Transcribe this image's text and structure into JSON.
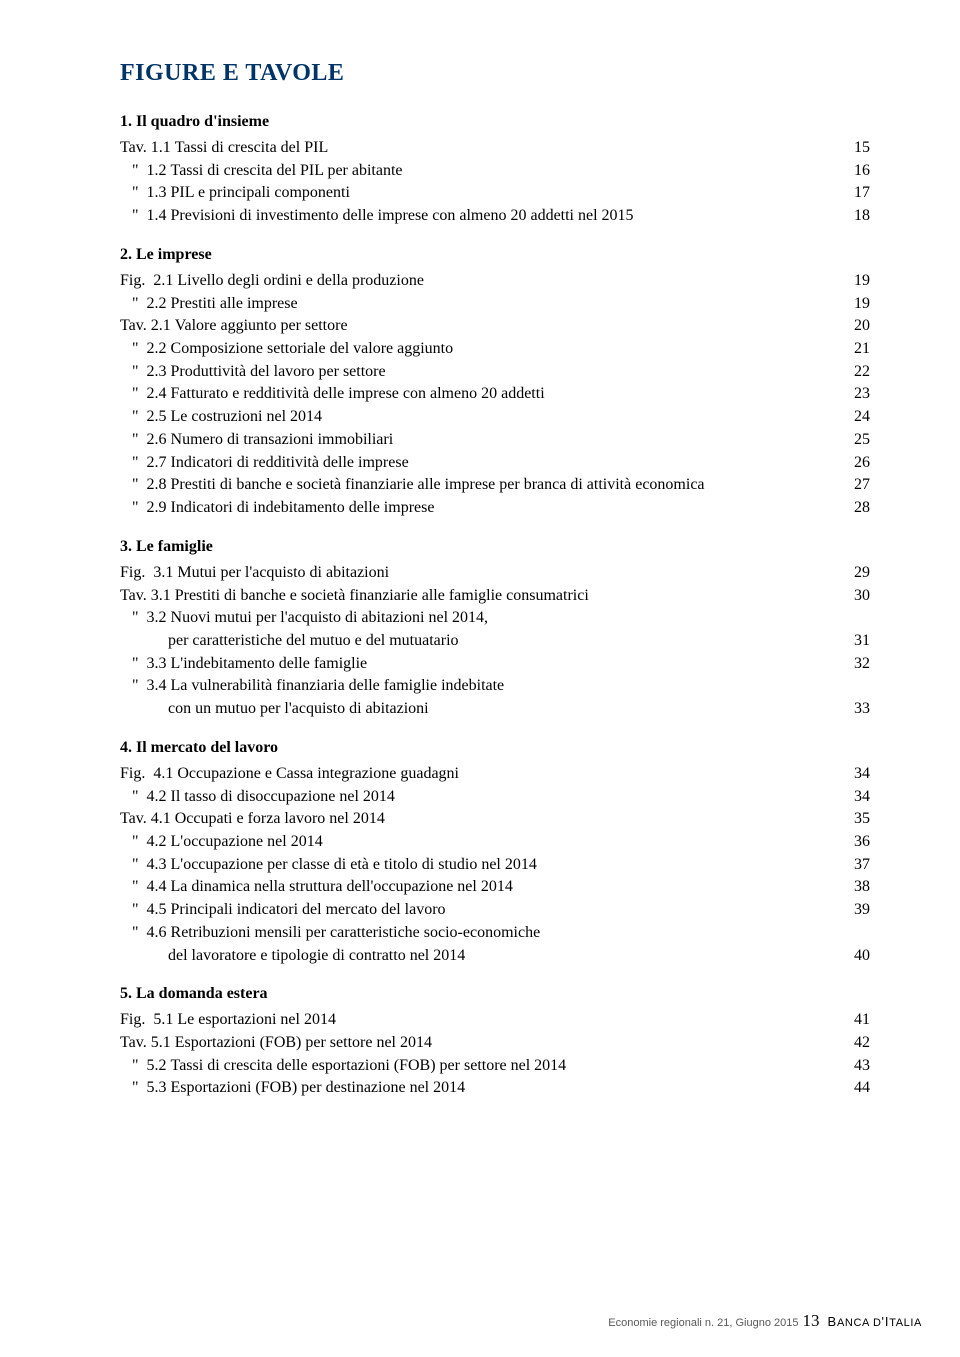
{
  "title": "FIGURE E TAVOLE",
  "sections": [
    {
      "heading": "1. Il quadro d'insieme",
      "entries": [
        {
          "prefix": "Tav.",
          "num": "1.1",
          "label": "Tassi di crescita del PIL",
          "page": 15
        },
        {
          "prefix": "\"",
          "num": "1.2",
          "label": "Tassi di crescita del PIL per abitante",
          "page": 16
        },
        {
          "prefix": "\"",
          "num": "1.3",
          "label": "PIL e principali componenti",
          "page": 17
        },
        {
          "prefix": "\"",
          "num": "1.4",
          "label": "Previsioni di investimento delle imprese con almeno 20 addetti nel 2015",
          "page": 18
        }
      ]
    },
    {
      "heading": "2. Le imprese",
      "entries": [
        {
          "prefix": "Fig.",
          "num": "2.1",
          "label": "Livello degli ordini e della produzione",
          "page": 19
        },
        {
          "prefix": "\"",
          "num": "2.2",
          "label": "Prestiti alle imprese",
          "page": 19
        },
        {
          "prefix": "Tav.",
          "num": "2.1",
          "label": "Valore aggiunto per settore",
          "page": 20
        },
        {
          "prefix": "\"",
          "num": "2.2",
          "label": "Composizione settoriale del valore aggiunto",
          "page": 21
        },
        {
          "prefix": "\"",
          "num": "2.3",
          "label": "Produttività del lavoro per settore",
          "page": 22
        },
        {
          "prefix": "\"",
          "num": "2.4",
          "label": "Fatturato e redditività delle imprese con almeno 20 addetti",
          "page": 23
        },
        {
          "prefix": "\"",
          "num": "2.5",
          "label": "Le costruzioni nel 2014",
          "page": 24
        },
        {
          "prefix": "\"",
          "num": "2.6",
          "label": "Numero di transazioni immobiliari",
          "page": 25
        },
        {
          "prefix": "\"",
          "num": "2.7",
          "label": "Indicatori di redditività delle imprese",
          "page": 26
        },
        {
          "prefix": "\"",
          "num": "2.8",
          "label": "Prestiti di banche e società finanziarie alle imprese per branca di attività economica",
          "page": 27
        },
        {
          "prefix": "\"",
          "num": "2.9",
          "label": "Indicatori di indebitamento delle imprese",
          "page": 28
        }
      ]
    },
    {
      "heading": "3. Le famiglie",
      "entries": [
        {
          "prefix": "Fig.",
          "num": "3.1",
          "label": "Mutui per l'acquisto di abitazioni",
          "page": 29
        },
        {
          "prefix": "Tav.",
          "num": "3.1",
          "label": "Prestiti di banche e società finanziarie alle famiglie consumatrici",
          "page": 30
        },
        {
          "prefix": "\"",
          "num": "3.2",
          "label": "Nuovi mutui per l'acquisto di abitazioni nel 2014,",
          "page": null
        },
        {
          "prefix": "",
          "num": "",
          "label": "per caratteristiche del mutuo e del mutuatario",
          "page": 31,
          "indent": true
        },
        {
          "prefix": "\"",
          "num": "3.3",
          "label": "L'indebitamento delle famiglie",
          "page": 32
        },
        {
          "prefix": "\"",
          "num": "3.4",
          "label": "La vulnerabilità finanziaria delle famiglie indebitate",
          "page": null
        },
        {
          "prefix": "",
          "num": "",
          "label": "con un mutuo per l'acquisto di abitazioni",
          "page": 33,
          "indent": true
        }
      ]
    },
    {
      "heading": "4. Il mercato del lavoro",
      "entries": [
        {
          "prefix": "Fig.",
          "num": "4.1",
          "label": "Occupazione e Cassa integrazione guadagni",
          "page": 34
        },
        {
          "prefix": "\"",
          "num": "4.2",
          "label": "Il tasso di disoccupazione nel 2014",
          "page": 34
        },
        {
          "prefix": "Tav.",
          "num": "4.1",
          "label": "Occupati e forza lavoro nel 2014",
          "page": 35
        },
        {
          "prefix": "\"",
          "num": "4.2",
          "label": "L'occupazione nel 2014",
          "page": 36
        },
        {
          "prefix": "\"",
          "num": "4.3",
          "label": "L'occupazione per classe di età e titolo di studio nel 2014",
          "page": 37
        },
        {
          "prefix": "\"",
          "num": "4.4",
          "label": "La dinamica nella struttura dell'occupazione nel 2014",
          "page": 38
        },
        {
          "prefix": "\"",
          "num": "4.5",
          "label": "Principali indicatori del mercato del lavoro",
          "page": 39
        },
        {
          "prefix": "\"",
          "num": "4.6",
          "label": "Retribuzioni mensili per caratteristiche socio-economiche",
          "page": null
        },
        {
          "prefix": "",
          "num": "",
          "label": "del lavoratore e tipologie di contratto nel 2014",
          "page": 40,
          "indent": true
        }
      ]
    },
    {
      "heading": "5. La domanda estera",
      "entries": [
        {
          "prefix": "Fig.",
          "num": "5.1",
          "label": "Le esportazioni nel 2014",
          "page": 41
        },
        {
          "prefix": "Tav.",
          "num": "5.1",
          "label": "Esportazioni (FOB) per settore nel 2014",
          "page": 42
        },
        {
          "prefix": "\"",
          "num": "5.2",
          "label": "Tassi di crescita delle esportazioni (FOB) per settore nel 2014",
          "page": 43
        },
        {
          "prefix": "\"",
          "num": "5.3",
          "label": "Esportazioni (FOB) per destinazione nel 2014",
          "page": 44
        }
      ]
    }
  ],
  "footer": {
    "series": "Economie regionali n. 21, Giugno 2015",
    "pageNumber": "13",
    "bank_prefix": "B",
    "bank_inner": "ANCA  D",
    "bank_apos": "'I",
    "bank_suffix": "TALIA"
  },
  "colors": {
    "title": "#003366",
    "text": "#000000",
    "footer_grey": "#595959",
    "background": "#ffffff"
  }
}
